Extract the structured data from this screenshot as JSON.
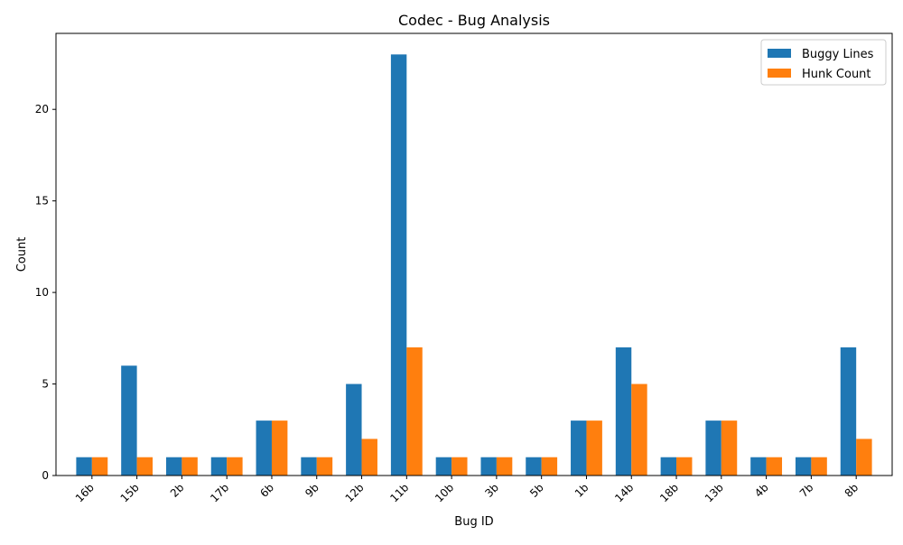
{
  "chart_data": {
    "type": "bar",
    "title": "Codec - Bug Analysis",
    "xlabel": "Bug ID",
    "ylabel": "Count",
    "categories": [
      "16b",
      "15b",
      "2b",
      "17b",
      "6b",
      "9b",
      "12b",
      "11b",
      "10b",
      "3b",
      "5b",
      "1b",
      "14b",
      "18b",
      "13b",
      "4b",
      "7b",
      "8b"
    ],
    "series": [
      {
        "name": "Buggy Lines",
        "color": "#1f77b4",
        "values": [
          1,
          6,
          1,
          1,
          3,
          1,
          5,
          23,
          1,
          1,
          1,
          3,
          7,
          1,
          3,
          1,
          1,
          7
        ]
      },
      {
        "name": "Hunk Count",
        "color": "#ff7f0e",
        "values": [
          1,
          1,
          1,
          1,
          3,
          1,
          2,
          7,
          1,
          1,
          1,
          3,
          5,
          1,
          3,
          1,
          1,
          2
        ]
      }
    ],
    "ylim": [
      0,
      24.15
    ],
    "yticks": [
      0,
      5,
      10,
      15,
      20
    ],
    "grid": false,
    "legend_position": "top-right"
  }
}
